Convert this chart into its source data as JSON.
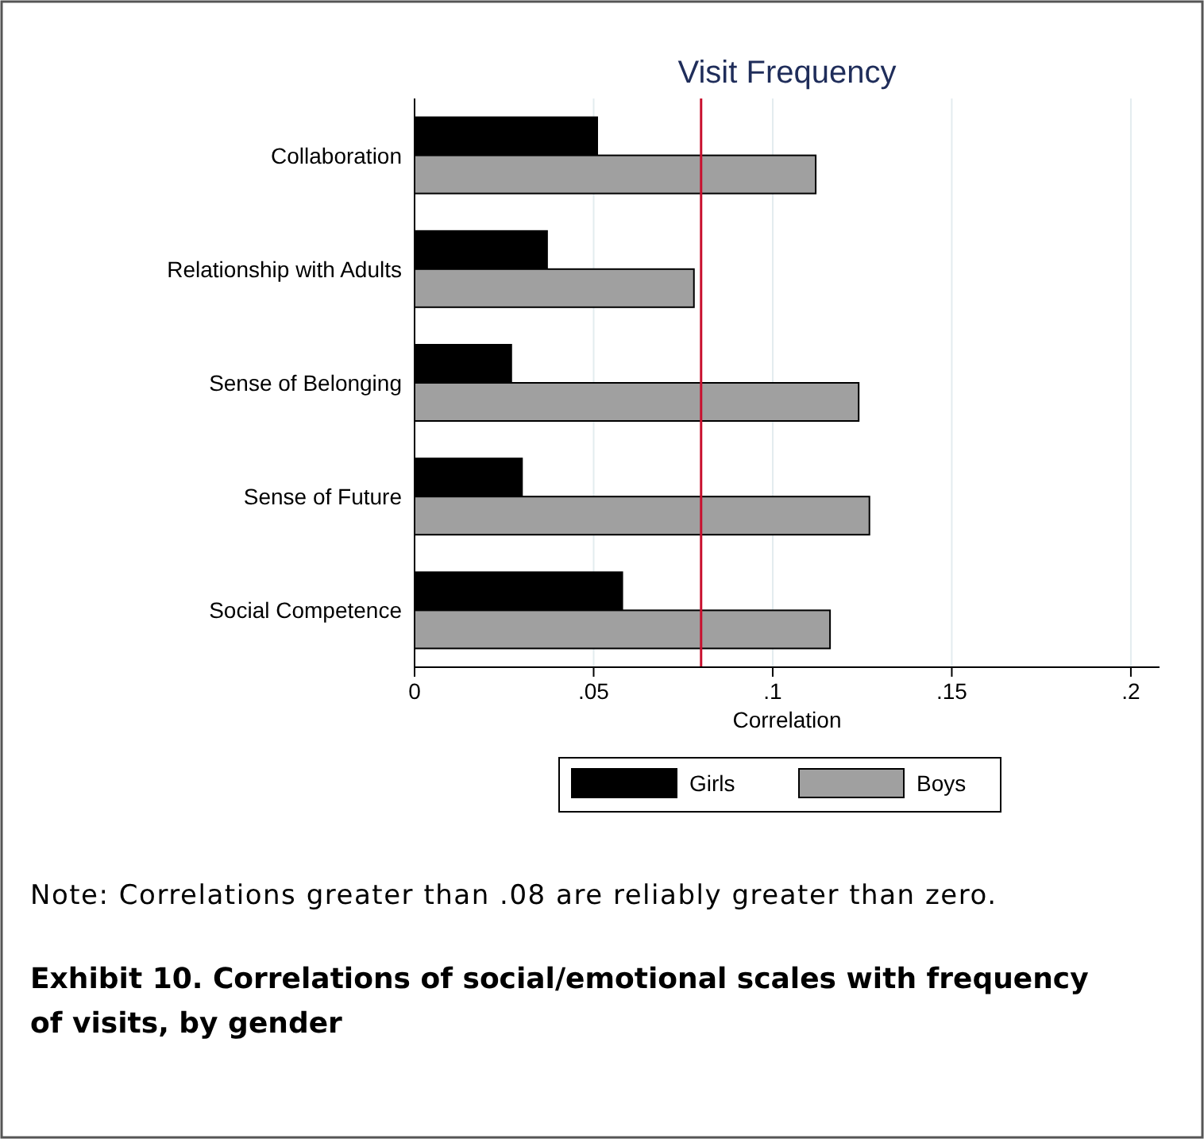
{
  "chart_data": {
    "type": "bar",
    "orientation": "horizontal",
    "title": "Visit Frequency",
    "xlabel": "Correlation",
    "categories": [
      "Collaboration",
      "Relationship with Adults",
      "Sense of Belonging",
      "Sense of Future",
      "Social Competence"
    ],
    "series": [
      {
        "name": "Girls",
        "color": "#000000",
        "values": [
          0.051,
          0.037,
          0.027,
          0.03,
          0.058
        ]
      },
      {
        "name": "Boys",
        "color": "#a0a0a0",
        "values": [
          0.112,
          0.078,
          0.124,
          0.127,
          0.116
        ]
      }
    ],
    "xlim": [
      0,
      0.208
    ],
    "xticks": [
      {
        "value": 0,
        "label": "0"
      },
      {
        "value": 0.05,
        "label": ".05"
      },
      {
        "value": 0.1,
        "label": ".1"
      },
      {
        "value": 0.15,
        "label": ".15"
      },
      {
        "value": 0.2,
        "label": ".2"
      }
    ],
    "grid": "x",
    "legend": "bottom",
    "ref_lines": [
      {
        "axis": "x",
        "value": 0.08,
        "color": "#c8102e"
      }
    ],
    "annotations": [
      "Note: Correlations greater than .08 are reliably greater than zero.",
      "Exhibit 10. Correlations of social/emotional scales with frequency of visits, by gender"
    ]
  }
}
